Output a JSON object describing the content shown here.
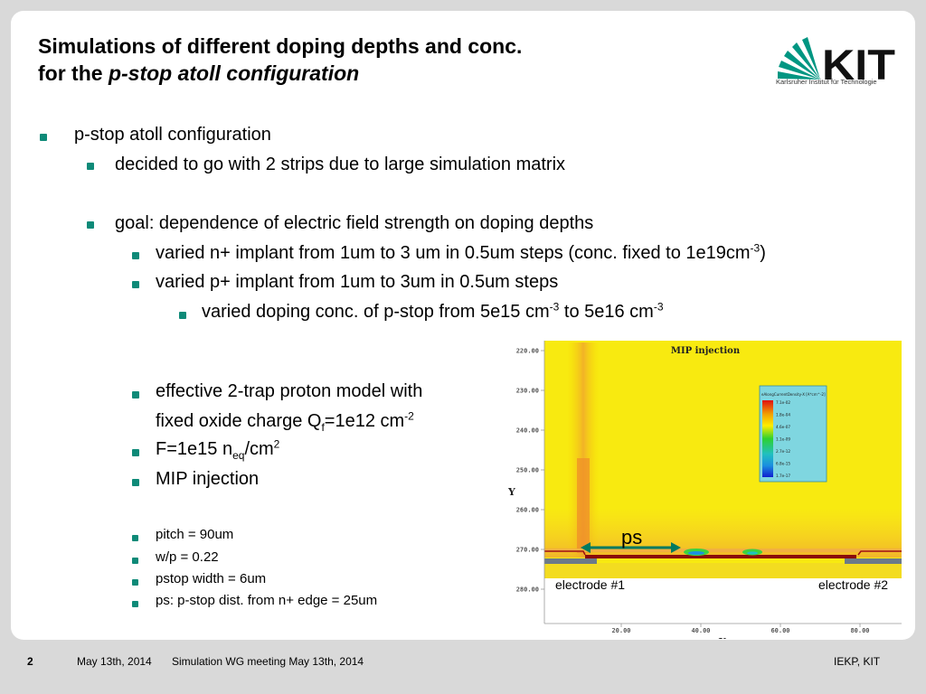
{
  "title": {
    "line1": "Simulations of different doping depths and conc.",
    "line2_prefix": "for the ",
    "line2_italic": "p-stop atoll configuration"
  },
  "logo": {
    "text": "KIT",
    "tagline": "Karlsruher Institut für Technologie",
    "color": "#009682"
  },
  "bullets": {
    "b1": "p-stop atoll configuration",
    "b2": "decided to go with 2 strips due to large simulation matrix",
    "b3": "goal: dependence of electric field strength on doping depths",
    "b4_a": "varied n+ implant from 1um to 3 um in 0.5um steps (conc. fixed to 1e19cm",
    "b4_sup": "-3",
    "b4_b": ")",
    "b5": "varied p+ implant from 1um to 3um in 0.5um steps",
    "b6_a": "varied doping conc. of p-stop from 5e15 cm",
    "b6_sup1": "-3",
    "b6_b": " to 5e16 cm",
    "b6_sup2": "-3",
    "b7_line1": "effective 2-trap proton model with",
    "b7_line2_a": "fixed oxide charge Q",
    "b7_line2_sub": "f",
    "b7_line2_b": "=1e12 cm",
    "b7_line2_sup": "-2",
    "b8_a": "F=1e15 n",
    "b8_sub": "eq",
    "b8_b": "/cm",
    "b8_sup": "2",
    "b9": "MIP injection",
    "s1": "pitch = 90um",
    "s2": "w/p = 0.22",
    "s3": "pstop width = 6um",
    "s4": "ps: p-stop dist. from n+ edge = 25um"
  },
  "sim": {
    "plot_title": "MIP injection",
    "xlabel": "X",
    "ylabel": "Y",
    "x_ticks": [
      "20.00",
      "40.00",
      "60.00",
      "80.00"
    ],
    "y_ticks": [
      "220.00",
      "230.00",
      "240.00",
      "250.00",
      "260.00",
      "270.00",
      "280.00"
    ],
    "legend_title": "eAlongCurrentDensity-X [A*cm^-2]",
    "legend_values": [
      "7.1e-02",
      "1.8e-04",
      "4.6e-07",
      "1.1e-09",
      "2.7e-12",
      "6.8e-15",
      "1.7e-17"
    ],
    "ps_label": "ps",
    "electrode1": "electrode #1",
    "electrode2": "electrode #2"
  },
  "footer": {
    "page": "2",
    "date": "May 13th, 2014",
    "event": "Simulation WG meeting May 13th, 2014",
    "org": "IEKP, KIT"
  }
}
